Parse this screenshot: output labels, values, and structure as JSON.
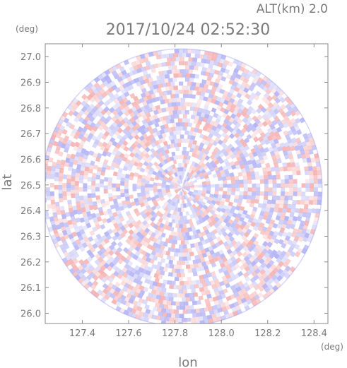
{
  "chart_data": {
    "type": "heatmap",
    "title": "2017/10/24 02:52:30",
    "altitude_label": "ALT(km) 2.0",
    "xlabel": "lon",
    "ylabel": "lat",
    "x_unit": "(deg)",
    "y_unit": "(deg)",
    "xlim": [
      127.24,
      128.46
    ],
    "ylim": [
      25.96,
      27.05
    ],
    "x_ticks": [
      "127.4",
      "127.6",
      "127.8",
      "128.0",
      "128.2",
      "128.4"
    ],
    "x_tick_values": [
      127.4,
      127.6,
      127.8,
      128.0,
      128.2,
      128.4
    ],
    "y_ticks": [
      "26.0",
      "26.1",
      "26.2",
      "26.3",
      "26.4",
      "26.5",
      "26.6",
      "26.7",
      "26.8",
      "26.9",
      "27.0"
    ],
    "y_tick_values": [
      26.0,
      26.1,
      26.2,
      26.3,
      26.4,
      26.5,
      26.6,
      26.7,
      26.8,
      26.9,
      27.0
    ],
    "center": {
      "lon": 127.83,
      "lat": 26.49
    },
    "radius_deg": {
      "lon": 0.605,
      "lat": 0.54
    },
    "colors": {
      "positive": "#f08a8a",
      "negative": "#8c8cf0",
      "axis": "#8a8a8a",
      "text": "#7a7a7a"
    },
    "grid": false
  }
}
